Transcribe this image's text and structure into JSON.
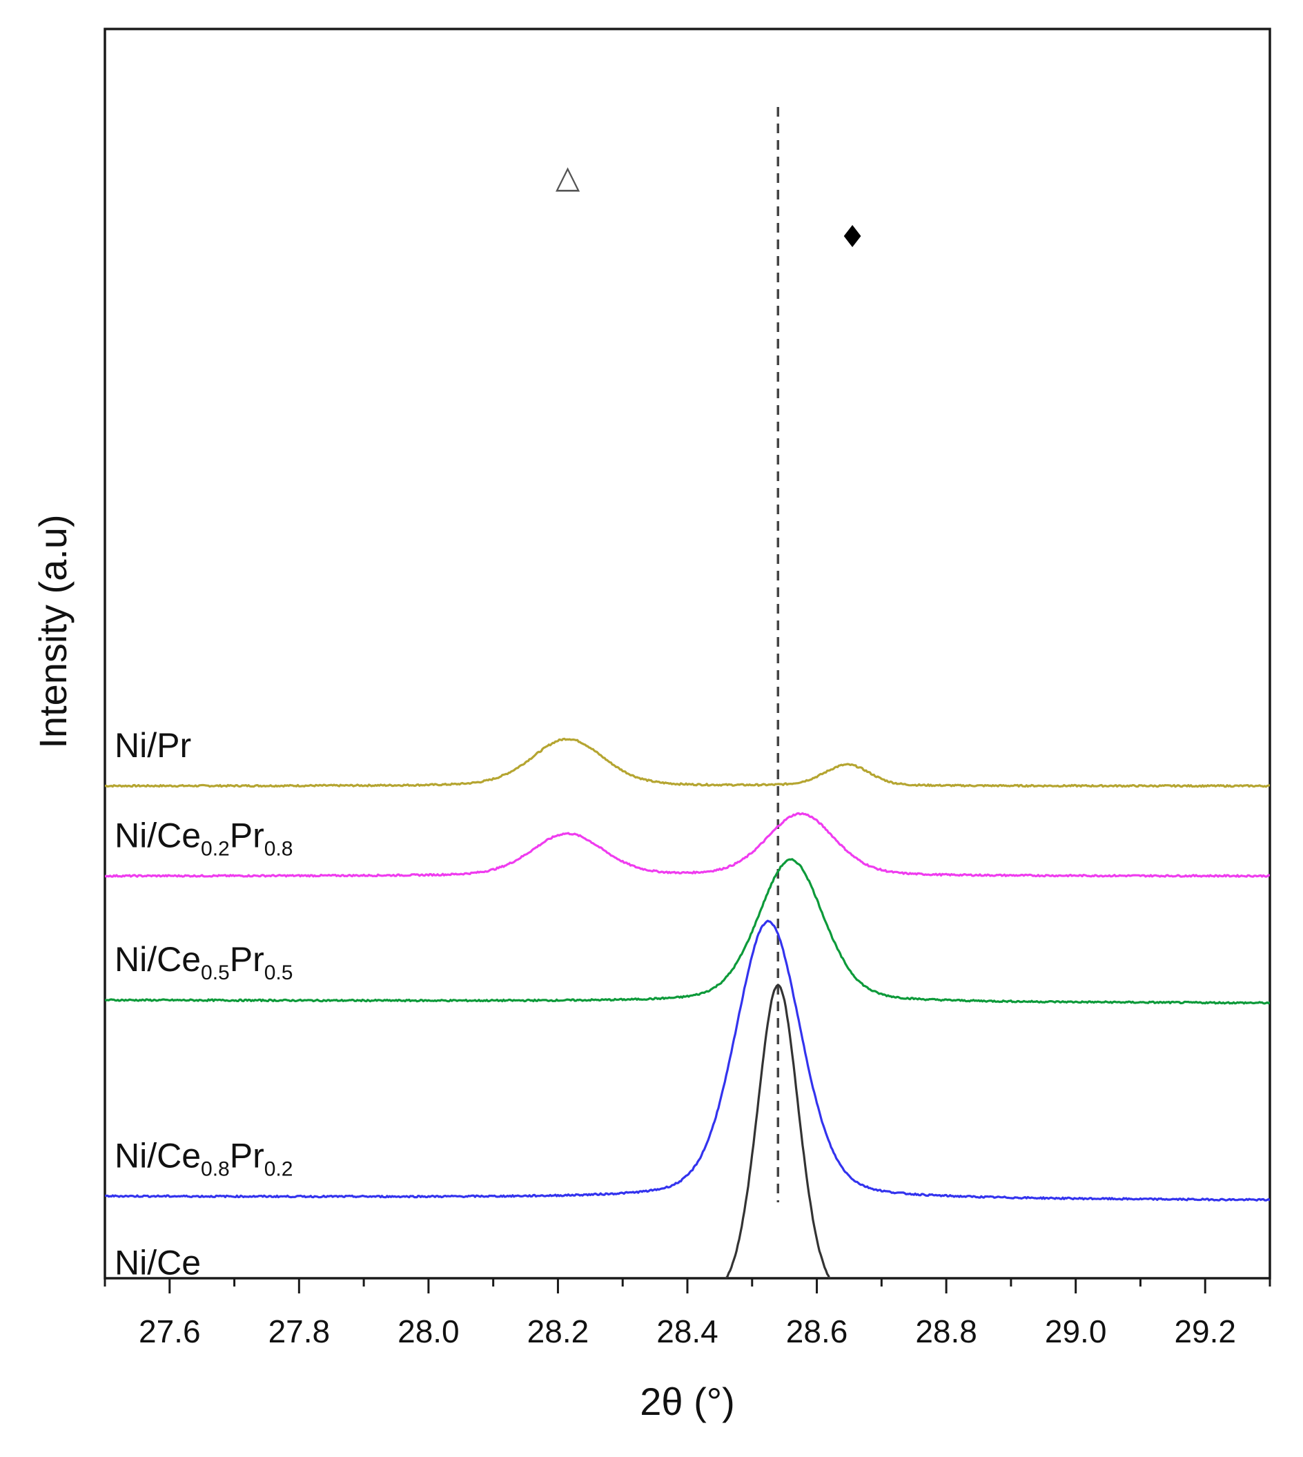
{
  "chart_data": {
    "type": "line",
    "xlabel": "2θ (°)",
    "ylabel": "Intensity (a.u)",
    "xlim": [
      27.5,
      29.3
    ],
    "x_ticks": [
      27.6,
      27.8,
      28.0,
      28.2,
      28.4,
      28.6,
      28.8,
      29.0,
      29.2
    ],
    "x_tick_labels": [
      "27.6",
      "27.8",
      "28.0",
      "28.2",
      "28.4",
      "28.6",
      "28.8",
      "29.0",
      "29.2"
    ],
    "y_ticks_shown": false,
    "reference_line_x": 28.54,
    "markers": [
      {
        "name": "triangle-marker",
        "symbol": "△",
        "x": 28.215,
        "color": "#555555"
      },
      {
        "name": "diamond-marker",
        "symbol": "♦",
        "x": 28.655,
        "color": "#000000"
      }
    ],
    "series": [
      {
        "name": "Ni/Pr",
        "label_main": "Ni/Pr",
        "sub1": "",
        "mid": "",
        "sub2": "",
        "color": "#b5a531",
        "baseline": 20.8,
        "end_baseline": 20.8,
        "peaks": [
          {
            "x": 28.215,
            "height": 2.35,
            "width": 0.055
          },
          {
            "x": 28.64,
            "height": 0.75,
            "width": 0.035
          },
          {
            "x": 28.66,
            "height": 0.35,
            "width": 0.03
          }
        ]
      },
      {
        "name": "Ni/Ce0.2Pr0.8",
        "label_main": "Ni/Ce",
        "sub1": "0.2",
        "mid": "Pr",
        "sub2": "0.8",
        "color": "#ef3cef",
        "baseline": 16.3,
        "end_baseline": 16.3,
        "peaks": [
          {
            "x": 28.215,
            "height": 2.1,
            "width": 0.055
          },
          {
            "x": 28.575,
            "height": 3.1,
            "width": 0.052
          }
        ]
      },
      {
        "name": "Ni/Ce0.5Pr0.5",
        "label_main": "Ni/Ce",
        "sub1": "0.5",
        "mid": "Pr",
        "sub2": "0.5",
        "color": "#0d9a3a",
        "baseline": 10.1,
        "end_baseline": 9.95,
        "peaks": [
          {
            "x": 28.56,
            "height": 7.1,
            "width": 0.05
          }
        ]
      },
      {
        "name": "Ni/Ce0.8Pr0.2",
        "label_main": "Ni/Ce",
        "sub1": "0.8",
        "mid": "Pr",
        "sub2": "0.2",
        "color": "#3333ee",
        "baseline": 0.3,
        "end_baseline": 0.1,
        "peaks": [
          {
            "x": 28.525,
            "height": 13.85,
            "width": 0.05
          }
        ]
      },
      {
        "name": "Ni/Ce",
        "label_main": "Ni/Ce",
        "sub1": "",
        "mid": "",
        "sub2": "",
        "color": "#333333",
        "baseline": -5.05,
        "end_baseline": -5.2,
        "peaks": [
          {
            "x": 28.54,
            "height": 16.0,
            "width": 0.032
          }
        ]
      }
    ]
  }
}
